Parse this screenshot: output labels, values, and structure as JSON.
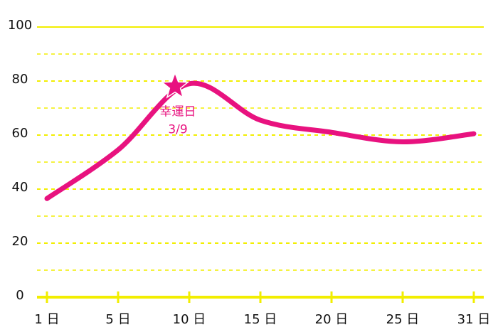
{
  "chart_data": {
    "type": "line",
    "x": [
      1,
      5,
      10,
      15,
      20,
      25,
      31
    ],
    "xticks": [
      {
        "value": 1,
        "label": "1 日"
      },
      {
        "value": 5,
        "label": "5 日"
      },
      {
        "value": 10,
        "label": "10 日"
      },
      {
        "value": 15,
        "label": "15 日"
      },
      {
        "value": 20,
        "label": "20 日"
      },
      {
        "value": 25,
        "label": "25 日"
      },
      {
        "value": 31,
        "label": "31 日"
      }
    ],
    "series": [
      {
        "color": "#e8127f",
        "values": [
          36.5,
          54.5,
          79,
          65.5,
          61,
          57.5,
          60.5
        ]
      }
    ],
    "ylim": [
      0,
      100
    ],
    "yticks": [
      0,
      20,
      40,
      60,
      80,
      100
    ],
    "minor_yticks": [
      10,
      30,
      50,
      70,
      90
    ],
    "grid": true,
    "grid_color": "#f2ee00",
    "annotation": {
      "x": 9,
      "y": 78,
      "lines": [
        "幸運日",
        "3/9"
      ]
    }
  }
}
